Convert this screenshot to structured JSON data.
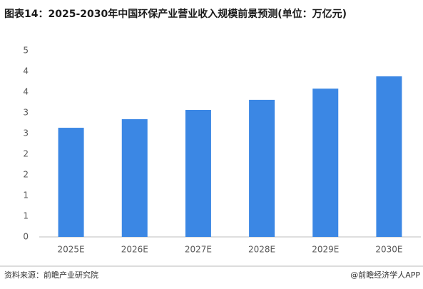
{
  "chart_data": {
    "type": "bar",
    "title": "图表14：2025-2030年中国环保产业营业收入规模前景预测(单位：万亿元)",
    "categories": [
      "2025E",
      "2026E",
      "2027E",
      "2028E",
      "2029E",
      "2030E"
    ],
    "values": [
      2.93,
      3.16,
      3.41,
      3.68,
      3.98,
      4.31
    ],
    "color": "#3b87e4",
    "ylim": [
      0,
      5
    ],
    "yticks": [
      0,
      {
        "value": 0.556,
        "label": "1"
      },
      {
        "value": 1.111,
        "label": "1"
      },
      {
        "value": 1.667,
        "label": "2"
      },
      {
        "value": 2.222,
        "label": "2"
      },
      {
        "value": 2.778,
        "label": "3"
      },
      {
        "value": 3.333,
        "label": "3"
      },
      {
        "value": 3.889,
        "label": "4"
      },
      {
        "value": 4.444,
        "label": "4"
      },
      5
    ],
    "grid": false,
    "source": "资料来源：前瞻产业研究院",
    "credit": "@前瞻经济学人APP"
  }
}
